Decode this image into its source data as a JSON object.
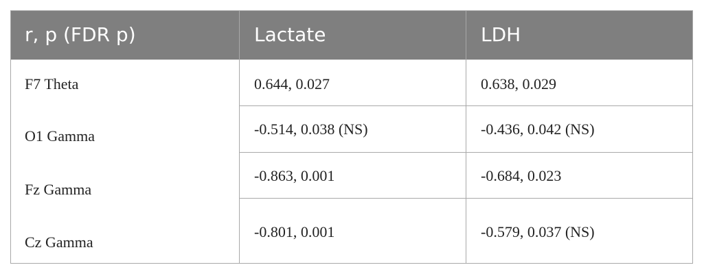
{
  "table": {
    "header": [
      "r, p (FDR p)",
      "Lactate",
      "LDH"
    ],
    "rows": [
      [
        "F7 Theta",
        "0.644, 0.027",
        "0.638, 0.029"
      ],
      [
        "O1 Gamma",
        "-0.514, 0.038 (NS)",
        "-0.436, 0.042 (NS)"
      ],
      [
        "Fz Gamma",
        "-0.863, 0.001",
        "-0.684, 0.023"
      ],
      [
        "Cz Gamma",
        "-0.801, 0.001",
        "-0.579, 0.037 (NS)"
      ]
    ]
  }
}
